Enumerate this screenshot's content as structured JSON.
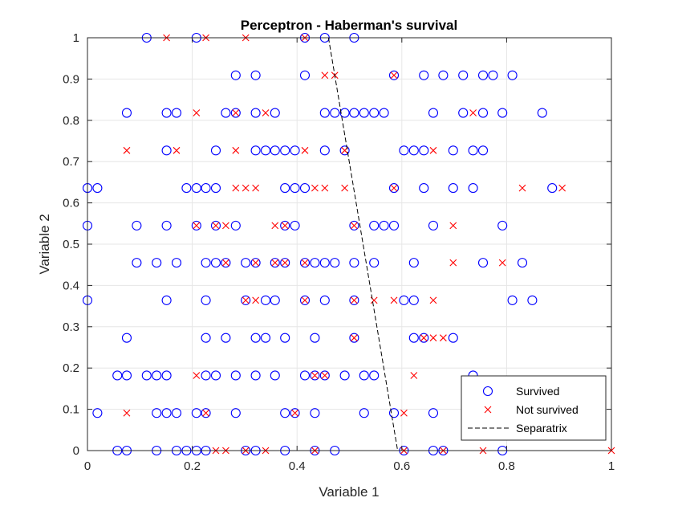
{
  "chart_data": {
    "type": "scatter",
    "title": "Perceptron - Haberman's survival",
    "xlabel": "Variable 1",
    "ylabel": "Variable 2",
    "xlim": [
      0,
      1
    ],
    "ylim": [
      0,
      1
    ],
    "xticks": [
      "0",
      "0.2",
      "0.4",
      "0.6",
      "0.8",
      "1"
    ],
    "yticks": [
      "0",
      "0.1",
      "0.2",
      "0.3",
      "0.4",
      "0.5",
      "0.6",
      "0.7",
      "0.8",
      "0.9",
      "1"
    ],
    "grid": true,
    "legend_position": "bottom-right",
    "series": [
      {
        "name": "Survived",
        "marker": "circle",
        "color": "#0000ff",
        "points": [
          [
            0.113,
            1
          ],
          [
            0.208,
            1
          ],
          [
            0.415,
            1
          ],
          [
            0.453,
            1
          ],
          [
            0.509,
            1
          ],
          [
            0.283,
            0.909
          ],
          [
            0.321,
            0.909
          ],
          [
            0.415,
            0.909
          ],
          [
            0.585,
            0.909
          ],
          [
            0.642,
            0.909
          ],
          [
            0.679,
            0.909
          ],
          [
            0.717,
            0.909
          ],
          [
            0.755,
            0.909
          ],
          [
            0.774,
            0.909
          ],
          [
            0.811,
            0.909
          ],
          [
            0.075,
            0.818
          ],
          [
            0.151,
            0.818
          ],
          [
            0.17,
            0.818
          ],
          [
            0.264,
            0.818
          ],
          [
            0.283,
            0.818
          ],
          [
            0.321,
            0.818
          ],
          [
            0.358,
            0.818
          ],
          [
            0.453,
            0.818
          ],
          [
            0.472,
            0.818
          ],
          [
            0.491,
            0.818
          ],
          [
            0.509,
            0.818
          ],
          [
            0.528,
            0.818
          ],
          [
            0.547,
            0.818
          ],
          [
            0.566,
            0.818
          ],
          [
            0.66,
            0.818
          ],
          [
            0.717,
            0.818
          ],
          [
            0.755,
            0.818
          ],
          [
            0.792,
            0.818
          ],
          [
            0.868,
            0.818
          ],
          [
            0.151,
            0.727
          ],
          [
            0.245,
            0.727
          ],
          [
            0.321,
            0.727
          ],
          [
            0.34,
            0.727
          ],
          [
            0.358,
            0.727
          ],
          [
            0.377,
            0.727
          ],
          [
            0.396,
            0.727
          ],
          [
            0.453,
            0.727
          ],
          [
            0.491,
            0.727
          ],
          [
            0.604,
            0.727
          ],
          [
            0.623,
            0.727
          ],
          [
            0.642,
            0.727
          ],
          [
            0.698,
            0.727
          ],
          [
            0.736,
            0.727
          ],
          [
            0.755,
            0.727
          ],
          [
            0.0,
            0.636
          ],
          [
            0.019,
            0.636
          ],
          [
            0.189,
            0.636
          ],
          [
            0.208,
            0.636
          ],
          [
            0.226,
            0.636
          ],
          [
            0.245,
            0.636
          ],
          [
            0.377,
            0.636
          ],
          [
            0.396,
            0.636
          ],
          [
            0.415,
            0.636
          ],
          [
            0.585,
            0.636
          ],
          [
            0.642,
            0.636
          ],
          [
            0.698,
            0.636
          ],
          [
            0.736,
            0.636
          ],
          [
            0.887,
            0.636
          ],
          [
            0.0,
            0.545
          ],
          [
            0.094,
            0.545
          ],
          [
            0.151,
            0.545
          ],
          [
            0.208,
            0.545
          ],
          [
            0.245,
            0.545
          ],
          [
            0.283,
            0.545
          ],
          [
            0.377,
            0.545
          ],
          [
            0.396,
            0.545
          ],
          [
            0.509,
            0.545
          ],
          [
            0.547,
            0.545
          ],
          [
            0.566,
            0.545
          ],
          [
            0.585,
            0.545
          ],
          [
            0.66,
            0.545
          ],
          [
            0.792,
            0.545
          ],
          [
            0.094,
            0.455
          ],
          [
            0.132,
            0.455
          ],
          [
            0.17,
            0.455
          ],
          [
            0.226,
            0.455
          ],
          [
            0.245,
            0.455
          ],
          [
            0.264,
            0.455
          ],
          [
            0.302,
            0.455
          ],
          [
            0.321,
            0.455
          ],
          [
            0.358,
            0.455
          ],
          [
            0.377,
            0.455
          ],
          [
            0.415,
            0.455
          ],
          [
            0.434,
            0.455
          ],
          [
            0.453,
            0.455
          ],
          [
            0.472,
            0.455
          ],
          [
            0.509,
            0.455
          ],
          [
            0.547,
            0.455
          ],
          [
            0.623,
            0.455
          ],
          [
            0.755,
            0.455
          ],
          [
            0.83,
            0.455
          ],
          [
            0.0,
            0.364
          ],
          [
            0.151,
            0.364
          ],
          [
            0.226,
            0.364
          ],
          [
            0.302,
            0.364
          ],
          [
            0.34,
            0.364
          ],
          [
            0.358,
            0.364
          ],
          [
            0.415,
            0.364
          ],
          [
            0.453,
            0.364
          ],
          [
            0.509,
            0.364
          ],
          [
            0.604,
            0.364
          ],
          [
            0.623,
            0.364
          ],
          [
            0.811,
            0.364
          ],
          [
            0.849,
            0.364
          ],
          [
            0.075,
            0.273
          ],
          [
            0.226,
            0.273
          ],
          [
            0.264,
            0.273
          ],
          [
            0.321,
            0.273
          ],
          [
            0.34,
            0.273
          ],
          [
            0.377,
            0.273
          ],
          [
            0.434,
            0.273
          ],
          [
            0.509,
            0.273
          ],
          [
            0.623,
            0.273
          ],
          [
            0.642,
            0.273
          ],
          [
            0.698,
            0.273
          ],
          [
            0.057,
            0.182
          ],
          [
            0.075,
            0.182
          ],
          [
            0.113,
            0.182
          ],
          [
            0.132,
            0.182
          ],
          [
            0.151,
            0.182
          ],
          [
            0.226,
            0.182
          ],
          [
            0.245,
            0.182
          ],
          [
            0.283,
            0.182
          ],
          [
            0.321,
            0.182
          ],
          [
            0.358,
            0.182
          ],
          [
            0.415,
            0.182
          ],
          [
            0.434,
            0.182
          ],
          [
            0.453,
            0.182
          ],
          [
            0.491,
            0.182
          ],
          [
            0.528,
            0.182
          ],
          [
            0.547,
            0.182
          ],
          [
            0.736,
            0.182
          ],
          [
            0.019,
            0.091
          ],
          [
            0.132,
            0.091
          ],
          [
            0.151,
            0.091
          ],
          [
            0.17,
            0.091
          ],
          [
            0.208,
            0.091
          ],
          [
            0.226,
            0.091
          ],
          [
            0.283,
            0.091
          ],
          [
            0.377,
            0.091
          ],
          [
            0.396,
            0.091
          ],
          [
            0.434,
            0.091
          ],
          [
            0.528,
            0.091
          ],
          [
            0.585,
            0.091
          ],
          [
            0.66,
            0.091
          ],
          [
            0.057,
            0
          ],
          [
            0.075,
            0
          ],
          [
            0.132,
            0
          ],
          [
            0.17,
            0
          ],
          [
            0.189,
            0
          ],
          [
            0.208,
            0
          ],
          [
            0.226,
            0
          ],
          [
            0.302,
            0
          ],
          [
            0.321,
            0
          ],
          [
            0.377,
            0
          ],
          [
            0.434,
            0
          ],
          [
            0.472,
            0
          ],
          [
            0.604,
            0
          ],
          [
            0.66,
            0
          ],
          [
            0.679,
            0
          ],
          [
            0.792,
            0
          ]
        ]
      },
      {
        "name": "Not survived",
        "marker": "x",
        "color": "#ff0000",
        "points": [
          [
            0.151,
            1
          ],
          [
            0.226,
            1
          ],
          [
            0.302,
            1
          ],
          [
            0.415,
            1
          ],
          [
            0.453,
            0.909
          ],
          [
            0.472,
            0.909
          ],
          [
            0.585,
            0.909
          ],
          [
            0.208,
            0.818
          ],
          [
            0.283,
            0.818
          ],
          [
            0.34,
            0.818
          ],
          [
            0.736,
            0.818
          ],
          [
            0.075,
            0.727
          ],
          [
            0.17,
            0.727
          ],
          [
            0.283,
            0.727
          ],
          [
            0.415,
            0.727
          ],
          [
            0.491,
            0.727
          ],
          [
            0.66,
            0.727
          ],
          [
            0.283,
            0.636
          ],
          [
            0.302,
            0.636
          ],
          [
            0.321,
            0.636
          ],
          [
            0.434,
            0.636
          ],
          [
            0.453,
            0.636
          ],
          [
            0.491,
            0.636
          ],
          [
            0.585,
            0.636
          ],
          [
            0.83,
            0.636
          ],
          [
            0.906,
            0.636
          ],
          [
            0.208,
            0.545
          ],
          [
            0.245,
            0.545
          ],
          [
            0.264,
            0.545
          ],
          [
            0.358,
            0.545
          ],
          [
            0.377,
            0.545
          ],
          [
            0.509,
            0.545
          ],
          [
            0.698,
            0.545
          ],
          [
            0.264,
            0.455
          ],
          [
            0.321,
            0.455
          ],
          [
            0.358,
            0.455
          ],
          [
            0.377,
            0.455
          ],
          [
            0.415,
            0.455
          ],
          [
            0.698,
            0.455
          ],
          [
            0.792,
            0.455
          ],
          [
            0.302,
            0.364
          ],
          [
            0.321,
            0.364
          ],
          [
            0.415,
            0.364
          ],
          [
            0.509,
            0.364
          ],
          [
            0.547,
            0.364
          ],
          [
            0.585,
            0.364
          ],
          [
            0.66,
            0.364
          ],
          [
            0.509,
            0.273
          ],
          [
            0.642,
            0.273
          ],
          [
            0.66,
            0.273
          ],
          [
            0.679,
            0.273
          ],
          [
            0.208,
            0.182
          ],
          [
            0.434,
            0.182
          ],
          [
            0.453,
            0.182
          ],
          [
            0.623,
            0.182
          ],
          [
            0.075,
            0.091
          ],
          [
            0.226,
            0.091
          ],
          [
            0.396,
            0.091
          ],
          [
            0.604,
            0.091
          ],
          [
            0.245,
            0
          ],
          [
            0.264,
            0
          ],
          [
            0.302,
            0
          ],
          [
            0.34,
            0
          ],
          [
            0.434,
            0
          ],
          [
            0.604,
            0
          ],
          [
            0.679,
            0
          ],
          [
            0.755,
            0
          ],
          [
            1.0,
            0
          ]
        ]
      },
      {
        "name": "Separatrix",
        "marker": "dashed-line",
        "color": "#000000",
        "points": [
          [
            0.46,
            1
          ],
          [
            0.592,
            0
          ]
        ]
      }
    ]
  }
}
